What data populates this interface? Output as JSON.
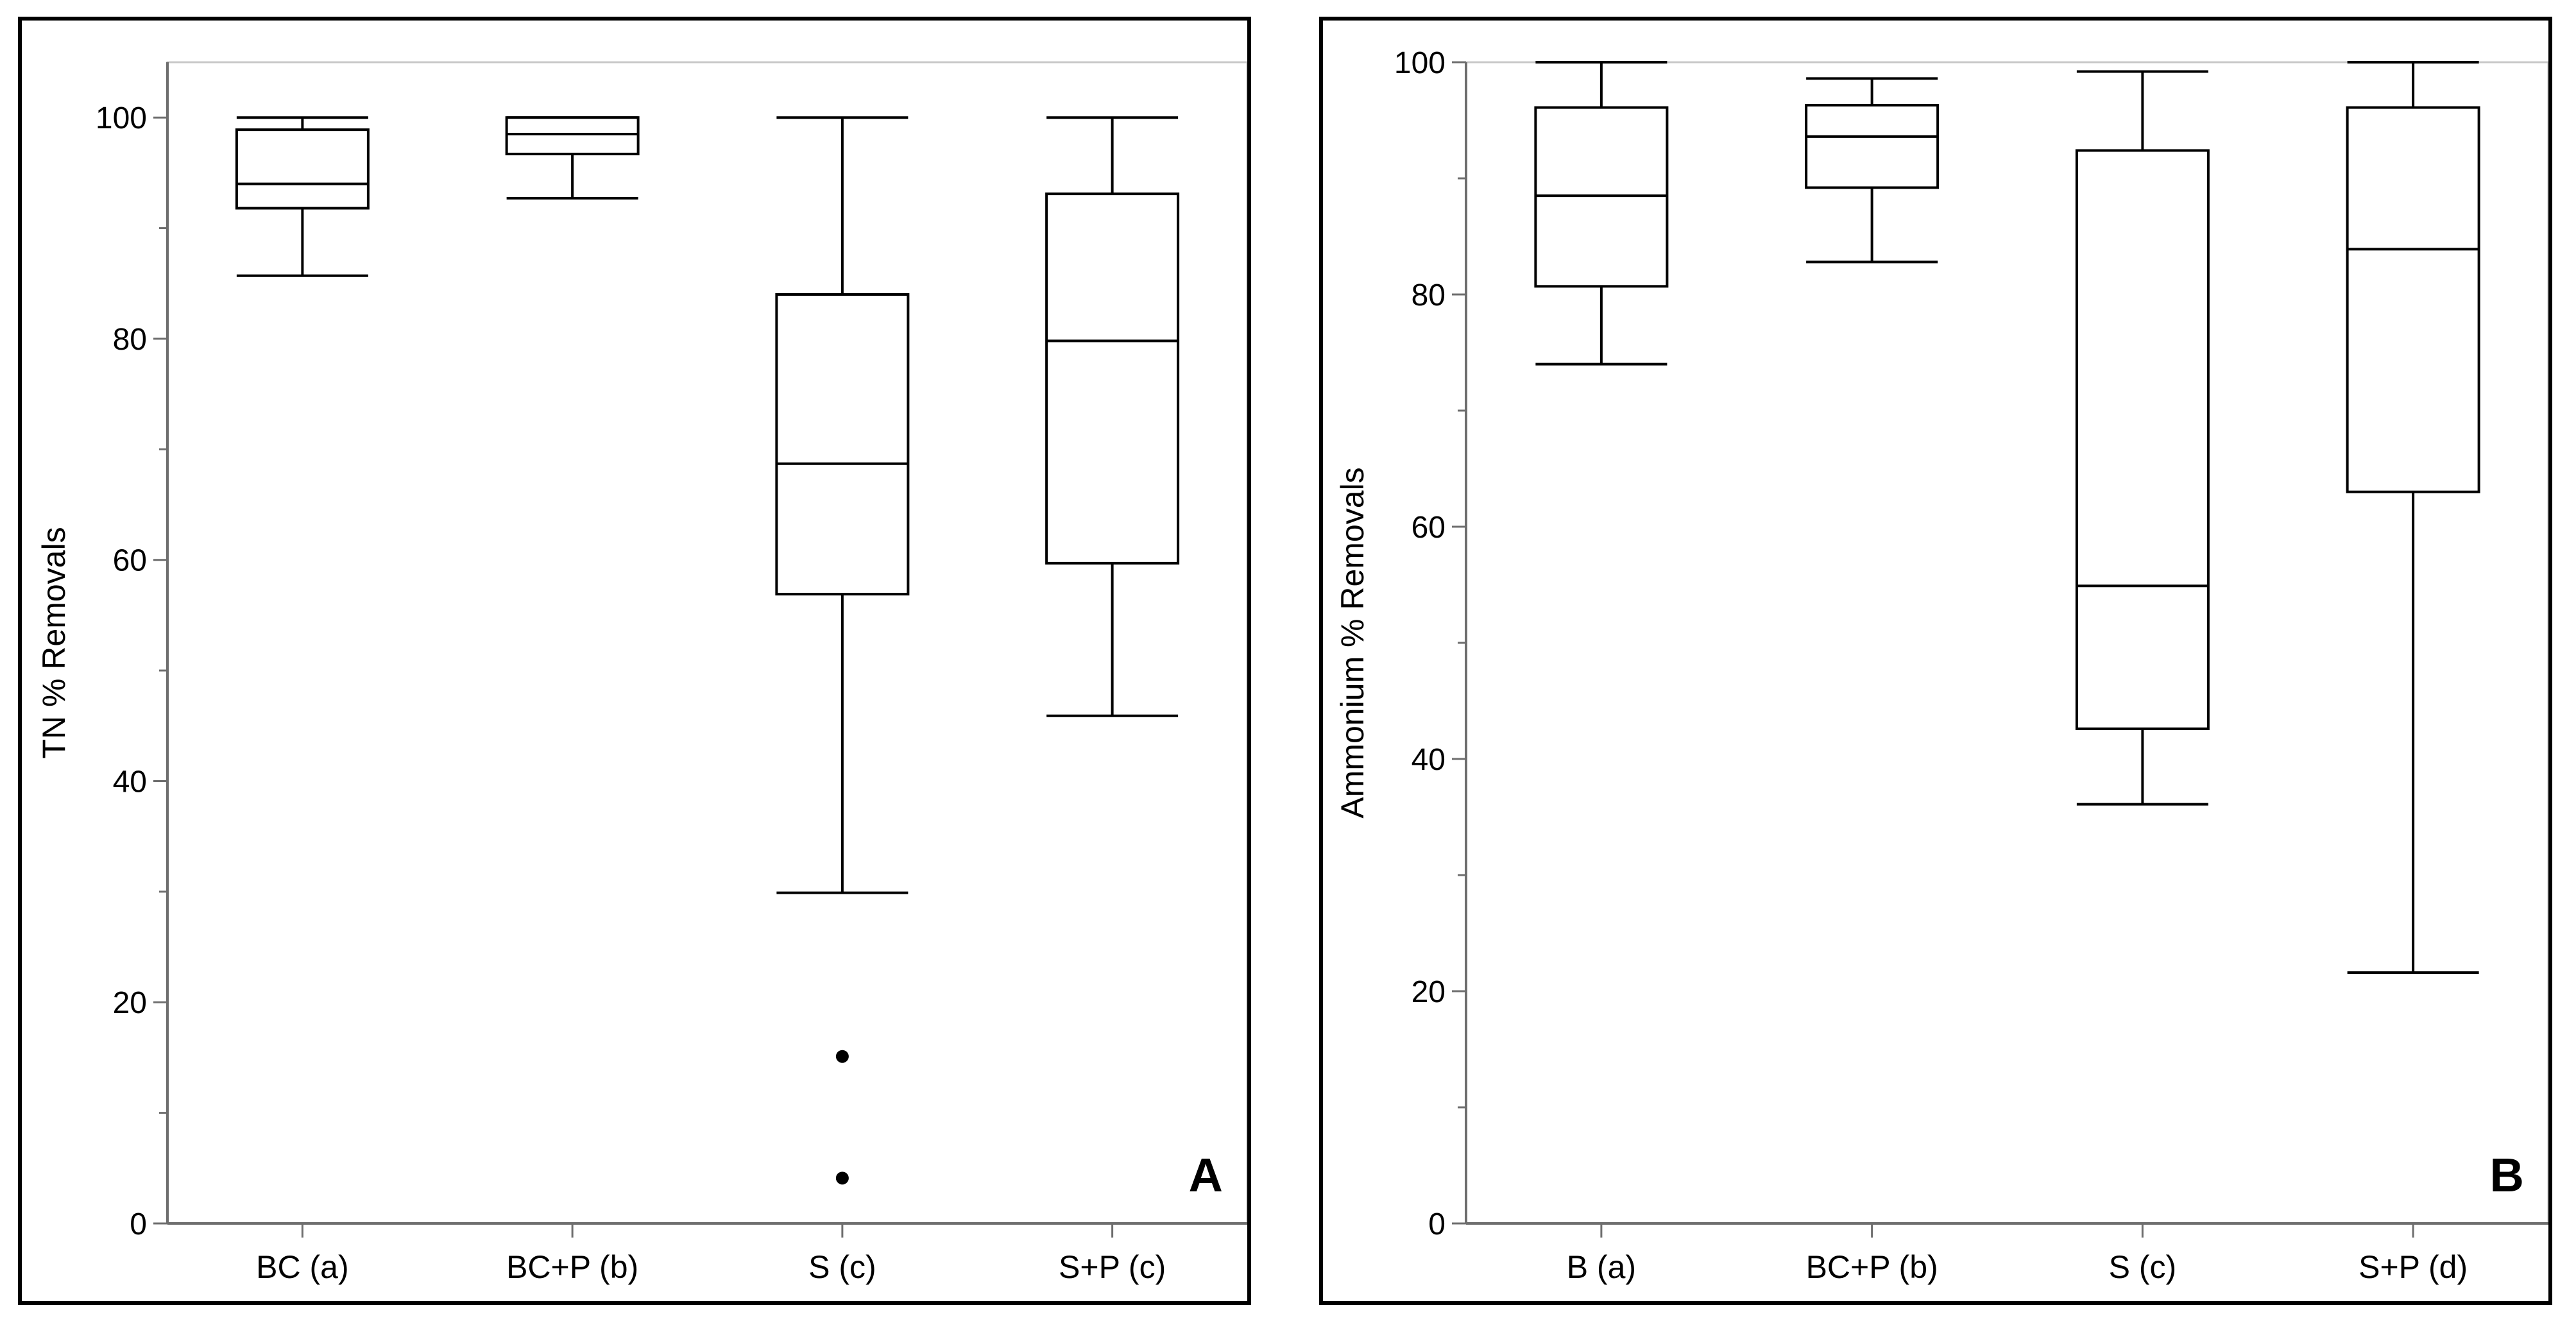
{
  "chart_data": [
    {
      "type": "boxplot",
      "panel_label": "A",
      "ylabel": "TN % Removals",
      "xlabel": "",
      "ylim": [
        0,
        105
      ],
      "yticks": [
        "0",
        "20",
        "40",
        "60",
        "80",
        "100"
      ],
      "grid": false,
      "categories": [
        "BC (a)",
        "BC+P (b)",
        "S (c)",
        "S+P (c)"
      ],
      "boxes": [
        {
          "whisker_low": 85.7,
          "q1": 91.8,
          "median": 94.0,
          "q3": 98.9,
          "whisker_high": 100,
          "outliers": []
        },
        {
          "whisker_low": 92.7,
          "q1": 96.7,
          "median": 98.5,
          "q3": 100,
          "whisker_high": 100,
          "outliers": []
        },
        {
          "whisker_low": 29.9,
          "q1": 56.9,
          "median": 68.7,
          "q3": 84.0,
          "whisker_high": 100,
          "outliers": [
            15.1,
            4.1
          ]
        },
        {
          "whisker_low": 45.9,
          "q1": 59.7,
          "median": 79.8,
          "q3": 93.1,
          "whisker_high": 100,
          "outliers": []
        }
      ]
    },
    {
      "type": "boxplot",
      "panel_label": "B",
      "ylabel": "Ammonium % Removals",
      "xlabel": "",
      "ylim": [
        0,
        100
      ],
      "yticks": [
        "0",
        "20",
        "40",
        "60",
        "80",
        "100"
      ],
      "grid": false,
      "categories": [
        "B (a)",
        "BC+P (b)",
        "S (c)",
        "S+P (d)"
      ],
      "boxes": [
        {
          "whisker_low": 74.0,
          "q1": 80.7,
          "median": 88.5,
          "q3": 96.1,
          "whisker_high": 100,
          "outliers": []
        },
        {
          "whisker_low": 82.8,
          "q1": 89.2,
          "median": 93.6,
          "q3": 96.3,
          "whisker_high": 98.6,
          "outliers": []
        },
        {
          "whisker_low": 36.1,
          "q1": 42.6,
          "median": 54.9,
          "q3": 92.4,
          "whisker_high": 99.2,
          "outliers": []
        },
        {
          "whisker_low": 21.6,
          "q1": 63.0,
          "median": 83.9,
          "q3": 96.1,
          "whisker_high": 100,
          "outliers": []
        }
      ]
    }
  ]
}
